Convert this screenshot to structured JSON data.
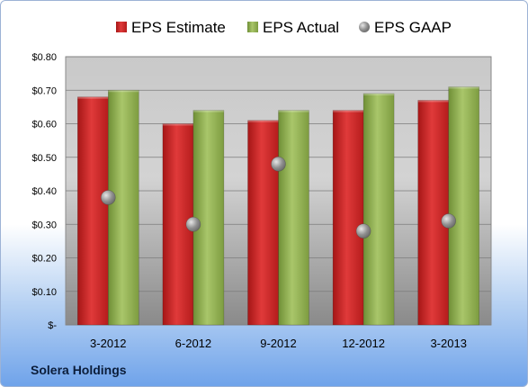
{
  "chart_data": {
    "type": "bar",
    "categories": [
      "3-2012",
      "6-2012",
      "9-2012",
      "12-2012",
      "3-2013"
    ],
    "series": [
      {
        "name": "EPS Estimate",
        "values": [
          0.68,
          0.6,
          0.61,
          0.64,
          0.67
        ],
        "color": "#cc1f1f",
        "kind": "bar"
      },
      {
        "name": "EPS Actual",
        "values": [
          0.7,
          0.64,
          0.64,
          0.69,
          0.71
        ],
        "color": "#8bac4c",
        "kind": "bar"
      },
      {
        "name": "EPS GAAP",
        "values": [
          0.38,
          0.3,
          0.48,
          0.28,
          0.31
        ],
        "color": "#9a9a9a",
        "kind": "marker"
      }
    ],
    "y_ticks": [
      "$-",
      "$0.10",
      "$0.20",
      "$0.30",
      "$0.40",
      "$0.50",
      "$0.60",
      "$0.70",
      "$0.80"
    ],
    "ylim": [
      0,
      0.8
    ],
    "grid": true,
    "legend_position": "top"
  },
  "footer": {
    "company": "Solera Holdings"
  }
}
